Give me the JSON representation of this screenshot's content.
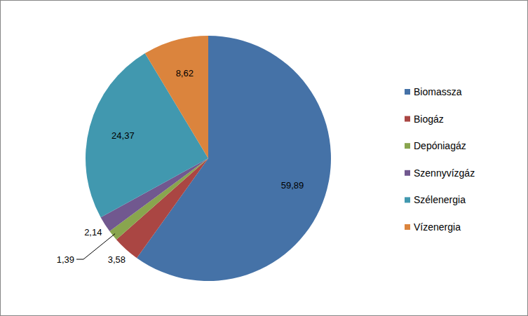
{
  "chart_data": {
    "type": "pie",
    "categories": [
      "Biomassza",
      "Biogáz",
      "Depóniagáz",
      "Szennyvízgáz",
      "Szélenergia",
      "Vízenergia"
    ],
    "values": [
      59.89,
      3.58,
      1.39,
      2.14,
      24.37,
      8.62
    ],
    "value_labels": [
      "59,89",
      "3,58",
      "1,39",
      "2,14",
      "24,37",
      "8,62"
    ],
    "colors": [
      "#4572A7",
      "#AA4643",
      "#89A54E",
      "#71588F",
      "#4198AF",
      "#DB843D"
    ],
    "data_labels": true,
    "legend": "right"
  }
}
